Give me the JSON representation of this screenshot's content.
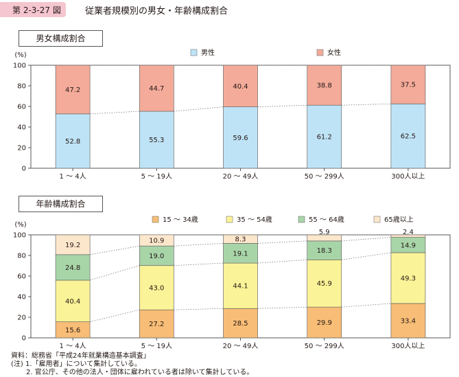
{
  "header": {
    "fig_label": "第 2-3-27 図",
    "title": "従業者規模別の男女・年齢構成割合"
  },
  "sections": {
    "gender_title": "男女構成割合",
    "age_title": "年齢構成割合"
  },
  "notes": [
    "資料：総務省「平成24年就業構造基本調査」",
    "(注) 1.「雇用者」について集計している。",
    "2. 官公庁、その他の法人・団体に雇われている者は除いて集計している。"
  ],
  "chart_data": [
    {
      "type": "bar",
      "stacked": true,
      "ylabel": "(%)",
      "ylim": [
        0,
        100
      ],
      "yticks": [
        0,
        20,
        40,
        60,
        80,
        100
      ],
      "categories": [
        "1 ～ 4人",
        "5 ～ 19人",
        "20 ～ 49人",
        "50 ～ 299人",
        "300人以上"
      ],
      "series": [
        {
          "name": "男性",
          "color": "#bfe3f6",
          "values": [
            52.8,
            55.3,
            59.6,
            61.2,
            62.5
          ]
        },
        {
          "name": "女性",
          "color": "#f4ab9a",
          "values": [
            47.2,
            44.7,
            40.4,
            38.8,
            37.5
          ]
        }
      ],
      "legend": "top"
    },
    {
      "type": "bar",
      "stacked": true,
      "ylabel": "(%)",
      "ylim": [
        0,
        100
      ],
      "yticks": [
        0,
        20,
        40,
        60,
        80,
        100
      ],
      "categories": [
        "1 ～ 4人",
        "5 ～ 19人",
        "20 ～ 49人",
        "50 ～ 299人",
        "300人以上"
      ],
      "series": [
        {
          "name": "15 ～ 34歳",
          "color": "#f8bd76",
          "values": [
            15.6,
            27.2,
            28.5,
            29.9,
            33.4
          ]
        },
        {
          "name": "35 ～ 54歳",
          "color": "#fbf397",
          "values": [
            40.4,
            43.0,
            44.1,
            45.9,
            49.3
          ]
        },
        {
          "name": "55 ～ 64歳",
          "color": "#a8d5a8",
          "values": [
            24.8,
            19.0,
            19.1,
            18.3,
            14.9
          ]
        },
        {
          "name": "65歳以上",
          "color": "#fde7cc",
          "values": [
            19.2,
            10.9,
            8.3,
            5.9,
            2.4
          ]
        }
      ],
      "legend": "top"
    }
  ]
}
